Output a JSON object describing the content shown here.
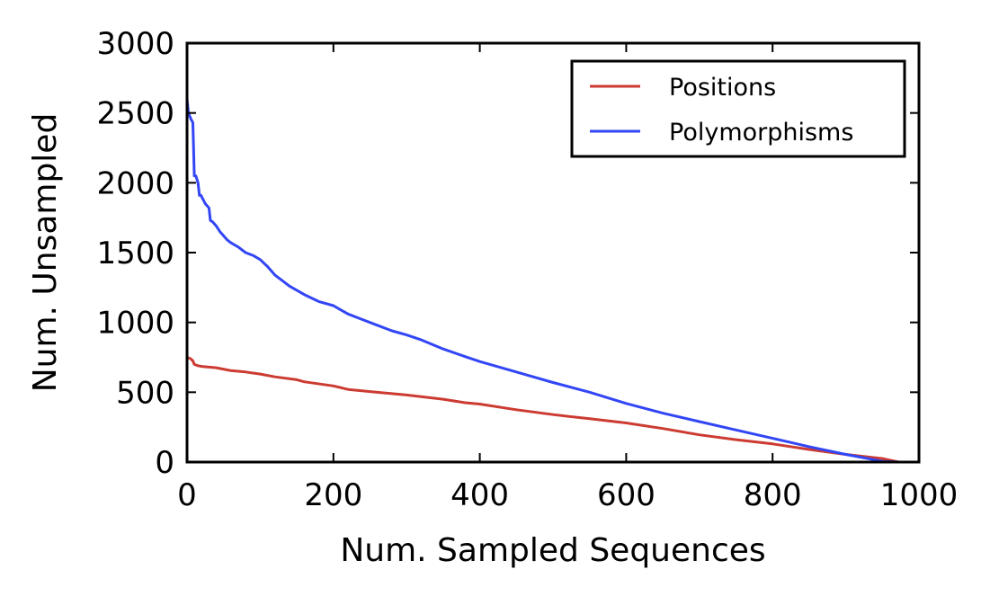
{
  "chart_data": {
    "type": "line",
    "title": "",
    "xlabel": "Num. Sampled Sequences",
    "ylabel": "Num. Unsampled",
    "xlim": [
      0,
      1000
    ],
    "ylim": [
      0,
      3000
    ],
    "xticks": [
      0,
      200,
      400,
      600,
      800,
      1000
    ],
    "yticks": [
      0,
      500,
      1000,
      1500,
      2000,
      2500,
      3000
    ],
    "xtick_labels": [
      "0",
      "200",
      "400",
      "600",
      "800",
      "1000"
    ],
    "ytick_labels": [
      "0",
      "500",
      "1000",
      "1500",
      "2000",
      "2500",
      "3000"
    ],
    "grid": false,
    "legend": {
      "placement": "top-right",
      "frame": true
    },
    "series": [
      {
        "name": "Positions",
        "color": "#cc3b32",
        "x": [
          0,
          5,
          8,
          10,
          12,
          15,
          20,
          40,
          60,
          80,
          100,
          120,
          150,
          160,
          200,
          220,
          250,
          300,
          350,
          380,
          400,
          450,
          500,
          550,
          600,
          650,
          700,
          750,
          800,
          850,
          900,
          950,
          972
        ],
        "y": [
          750,
          740,
          725,
          700,
          695,
          690,
          685,
          675,
          655,
          645,
          630,
          610,
          590,
          575,
          545,
          520,
          505,
          480,
          450,
          425,
          415,
          375,
          340,
          310,
          280,
          240,
          195,
          160,
          130,
          90,
          55,
          25,
          0
        ]
      },
      {
        "name": "Polymorphisms",
        "color": "#3246f5",
        "x": [
          0,
          2,
          5,
          8,
          10,
          12,
          15,
          17,
          19,
          20,
          25,
          30,
          32,
          35,
          40,
          45,
          50,
          55,
          60,
          70,
          80,
          90,
          100,
          110,
          120,
          130,
          140,
          150,
          160,
          180,
          200,
          210,
          220,
          240,
          260,
          280,
          300,
          320,
          350,
          380,
          400,
          450,
          500,
          550,
          600,
          650,
          700,
          750,
          800,
          850,
          900,
          950,
          972
        ],
        "y": [
          2600,
          2500,
          2460,
          2430,
          2050,
          2050,
          2000,
          1910,
          1910,
          1900,
          1850,
          1820,
          1730,
          1720,
          1690,
          1650,
          1620,
          1590,
          1570,
          1540,
          1500,
          1480,
          1450,
          1400,
          1340,
          1300,
          1260,
          1230,
          1200,
          1150,
          1120,
          1090,
          1060,
          1020,
          980,
          940,
          910,
          875,
          810,
          755,
          720,
          645,
          570,
          500,
          420,
          350,
          290,
          230,
          170,
          110,
          55,
          5,
          0
        ]
      }
    ]
  }
}
